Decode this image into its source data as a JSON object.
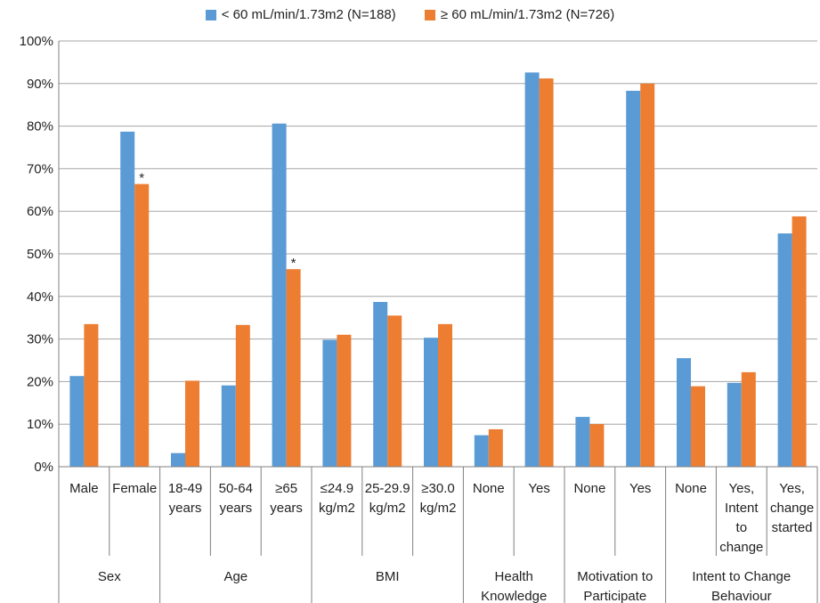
{
  "colors": {
    "series_low": "#5B9BD5",
    "series_high": "#ED7D31",
    "grid": "#A6A6A6",
    "axis": "#808080"
  },
  "chart_data": {
    "type": "bar",
    "title": "",
    "ylabel": "",
    "ylim": [
      0,
      100
    ],
    "y_ticks": [
      "0%",
      "10%",
      "20%",
      "30%",
      "40%",
      "50%",
      "60%",
      "70%",
      "80%",
      "90%",
      "100%"
    ],
    "legend_position": "top",
    "grid": true,
    "categories": [
      [
        "Male"
      ],
      [
        "Female"
      ],
      [
        "18-49",
        "years"
      ],
      [
        "50-64",
        "years"
      ],
      [
        "≥65",
        "years"
      ],
      [
        "≤24.9",
        "kg/m2"
      ],
      [
        "25-29.9",
        "kg/m2"
      ],
      [
        "≥30.0",
        "kg/m2"
      ],
      [
        "None"
      ],
      [
        "Yes"
      ],
      [
        "None"
      ],
      [
        "Yes"
      ],
      [
        "None"
      ],
      [
        "Yes,",
        "Intent",
        "to",
        "change"
      ],
      [
        "Yes,",
        "change",
        "started"
      ]
    ],
    "groups": [
      {
        "label": [
          "Sex"
        ],
        "span": 2
      },
      {
        "label": [
          "Age"
        ],
        "span": 3
      },
      {
        "label": [
          "BMI"
        ],
        "span": 3
      },
      {
        "label": [
          "Health",
          "Knowledge"
        ],
        "span": 2
      },
      {
        "label": [
          "Motivation to",
          "Participate"
        ],
        "span": 2
      },
      {
        "label": [
          "Intent to Change",
          "Behaviour"
        ],
        "span": 3
      }
    ],
    "series": [
      {
        "name": "< 60 mL/min/1.73m2 (N=188)",
        "values": [
          21.3,
          78.7,
          3.2,
          19.1,
          80.6,
          29.8,
          38.7,
          30.3,
          7.4,
          92.6,
          11.7,
          88.3,
          25.5,
          19.7,
          54.8
        ]
      },
      {
        "name": "≥ 60 mL/min/1.73m2 (N=726)",
        "values": [
          33.5,
          66.4,
          20.2,
          33.3,
          46.4,
          31.0,
          35.5,
          33.5,
          8.8,
          91.2,
          10.0,
          90.0,
          18.9,
          22.2,
          58.8
        ]
      }
    ],
    "annotations": [
      {
        "category_index": 1,
        "series_index": 1,
        "text": "*"
      },
      {
        "category_index": 4,
        "series_index": 1,
        "text": "*"
      }
    ]
  }
}
